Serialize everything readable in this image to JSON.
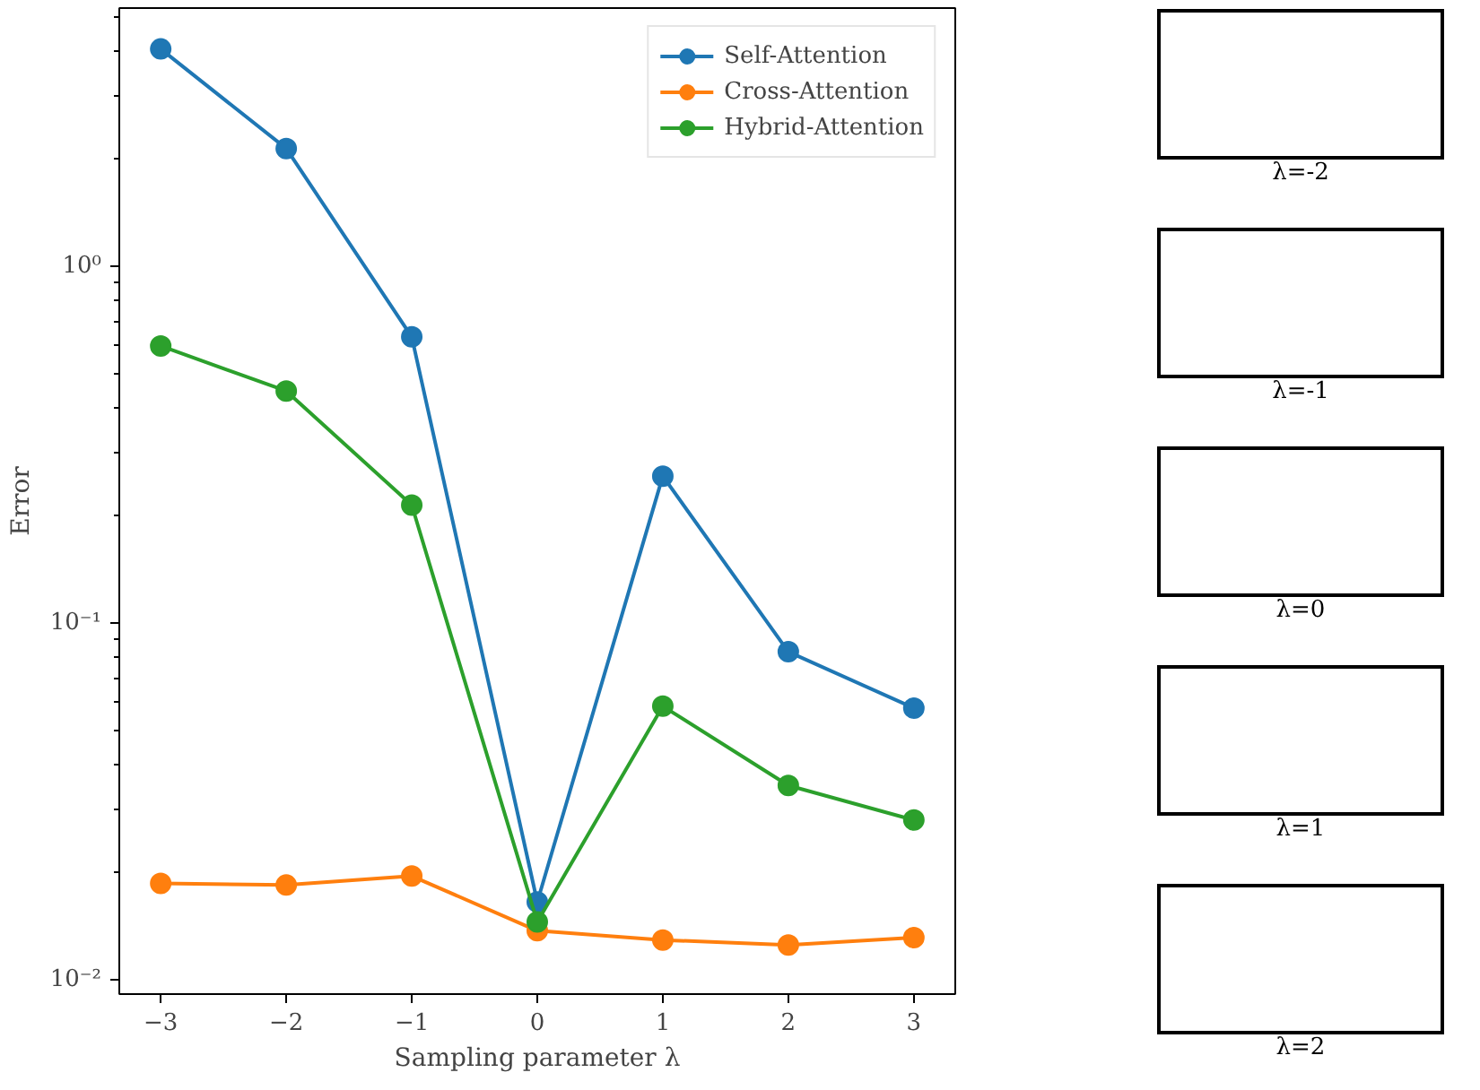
{
  "chart_data": [
    {
      "type": "line",
      "xlabel": "Sampling parameter λ",
      "ylabel": "Error",
      "x": [
        -3,
        -2,
        -1,
        0,
        1,
        2,
        3
      ],
      "series": [
        {
          "name": "Self-Attention",
          "color": "#1f77b4",
          "values": [
            4.07,
            2.14,
            0.634,
            0.0165,
            0.258,
            0.083,
            0.0577
          ]
        },
        {
          "name": "Cross-Attention",
          "color": "#ff7f0e",
          "values": [
            0.0186,
            0.0184,
            0.0195,
            0.0137,
            0.0129,
            0.0125,
            0.0131
          ]
        },
        {
          "name": "Hybrid-Attention",
          "color": "#2ca02c",
          "values": [
            0.598,
            0.447,
            0.214,
            0.0145,
            0.0584,
            0.035,
            0.028
          ]
        }
      ],
      "log": "y",
      "xlim": [
        -3.33,
        3.33
      ],
      "ylim": [
        0.0091,
        5.3
      ],
      "xticks": [
        {
          "value": -3,
          "label": "−3"
        },
        {
          "value": -2,
          "label": "−2"
        },
        {
          "value": -1,
          "label": "−1"
        },
        0,
        1,
        2,
        3
      ],
      "yticks": [
        {
          "value": 0.01,
          "label": "10⁻²"
        },
        {
          "value": 0.1,
          "label": "10⁻¹"
        },
        {
          "value": 1,
          "label": "10⁰"
        }
      ],
      "grid": false,
      "legend": "top right",
      "marker": "circle",
      "line_style": "solid"
    },
    {
      "type": "other",
      "title": "λ=-2"
    },
    {
      "type": "other",
      "title": "λ=-1"
    },
    {
      "type": "other",
      "title": "λ=0"
    },
    {
      "type": "other",
      "title": "λ=1"
    },
    {
      "type": "other",
      "title": "λ=2"
    }
  ]
}
